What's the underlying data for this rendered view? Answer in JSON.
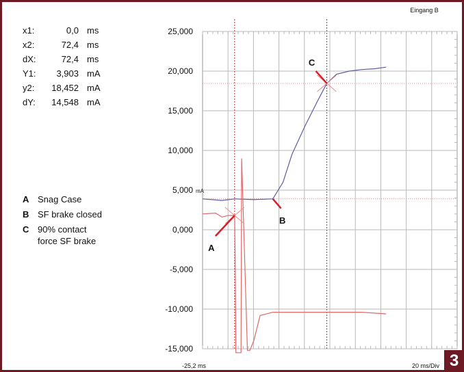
{
  "readout": [
    {
      "name": "x1:",
      "value": "0,0",
      "unit": "ms"
    },
    {
      "name": "x2:",
      "value": "72,4",
      "unit": "ms"
    },
    {
      "name": "dX:",
      "value": "72,4",
      "unit": "ms"
    },
    {
      "name": "Y1:",
      "value": "3,903",
      "unit": "mA"
    },
    {
      "name": "y2:",
      "value": "18,452",
      "unit": "mA"
    },
    {
      "name": "dY:",
      "value": "14,548",
      "unit": "mA"
    }
  ],
  "legend": [
    {
      "letter": "A",
      "text": "Snag Case"
    },
    {
      "letter": "B",
      "text": "SF brake closed"
    },
    {
      "letter": "C",
      "text": "90% contact force SF brake"
    }
  ],
  "page_number": "3",
  "chart_data": {
    "type": "line",
    "channel_label": "Eingang B",
    "unit_label": "mA",
    "x_start_label": "-25,2 ms",
    "x_scale_label": "20 ms/Div",
    "x_per_div_ms": 20,
    "x_divisions": 10,
    "x_start_ms": -25.2,
    "y_ticks": [
      "25,000",
      "20,000",
      "15,000",
      "10,000",
      "5,000",
      "0,000",
      "-5,000",
      "-10,000",
      "-15,000"
    ],
    "ylim": [
      -15,
      25
    ],
    "grid": true,
    "colors": {
      "blue": "#5a5aa0",
      "red": "#e0686a",
      "grid": "#b8b8b8",
      "marker": "#d81e2a"
    },
    "series": [
      {
        "color": "blue",
        "x": [
          -25.2,
          -10,
          0,
          15,
          30,
          38,
          45,
          55,
          65,
          72.4,
          80,
          90,
          100,
          110,
          119
        ],
        "y": [
          3.9,
          3.7,
          3.9,
          3.8,
          3.9,
          6.0,
          9.5,
          13.0,
          16.2,
          18.45,
          19.6,
          20.0,
          20.2,
          20.3,
          20.5
        ]
      },
      {
        "color": "red",
        "x": [
          -25.2,
          -15,
          -10,
          -5,
          0,
          0.5,
          1,
          5,
          5.5,
          10,
          12,
          15,
          20,
          30,
          60,
          100,
          119
        ],
        "y": [
          2.0,
          2.1,
          1.6,
          1.8,
          1.8,
          -5,
          -15.5,
          -15.5,
          9.0,
          -15.2,
          -15.2,
          -14.0,
          -10.8,
          -10.4,
          -10.4,
          -10.4,
          -10.6
        ]
      }
    ],
    "annotations": [
      {
        "label": "A",
        "x": 0,
        "y": 1.8
      },
      {
        "label": "B",
        "x": 30,
        "y": 3.9
      },
      {
        "label": "C",
        "x": 72.4,
        "y": 18.45
      }
    ],
    "cursors_ms": [
      0,
      72.4
    ]
  }
}
